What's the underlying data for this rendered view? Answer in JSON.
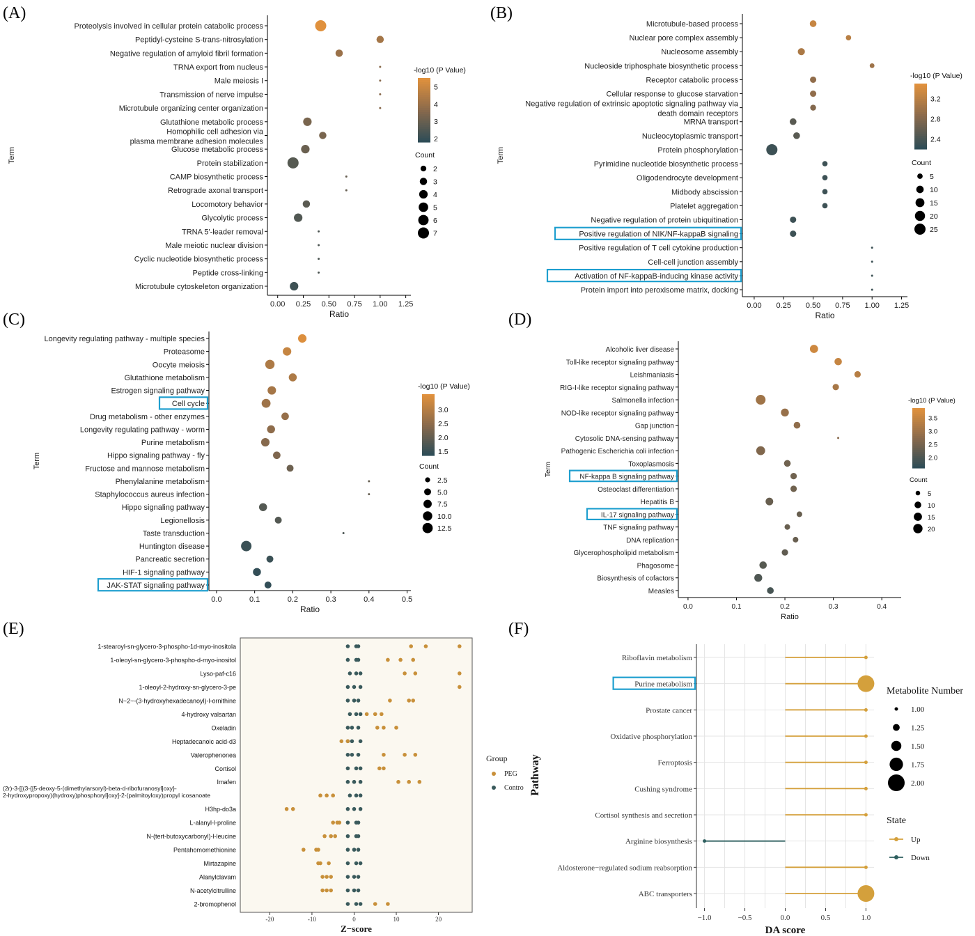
{
  "figure": {
    "panel_labels": [
      "(A)",
      "(B)",
      "(C)",
      "(D)",
      "(E)",
      "(F)"
    ]
  },
  "colors": {
    "high": "#e0913d",
    "mid": "#8a6a4c",
    "low": "#2f4d57",
    "up": "#d4a03c",
    "down": "#2e5f5f",
    "peg": "#c8903a",
    "control": "#3a5a5c",
    "highlight_box": "#1f9fcf"
  },
  "chart_data": [
    {
      "panel": "(A)",
      "type": "scatter",
      "xlabel": "Ratio",
      "ylabel": "Term",
      "xlim": [
        -0.1,
        1.3
      ],
      "xticks": [
        "0.00",
        "0.25",
        "0.50",
        "0.75",
        "1.00",
        "1.25"
      ],
      "terms": [
        "Proteolysis involved in cellular protein catabolic process",
        "Peptidyl-cysteine S-trans-nitrosylation",
        "Negative regulation of amyloid fibril formation",
        "TRNA export from nucleus",
        "Male meiosis I",
        "Transmission of nerve impulse",
        "Microtubule organizing center organization",
        "Glutathione metabolic process",
        "Homophilic cell adhesion via plasma membrane adhesion molecules",
        "Glucose metabolic process",
        "Protein stabilization",
        "CAMP biosynthetic process",
        "Retrograde axonal transport",
        "Locomotory behavior",
        "Glycolytic process",
        "TRNA 5'-leader removal",
        "Male meiotic nuclear division",
        "Cyclic nucleotide biosynthetic process",
        "Peptide cross-linking",
        "Microtubule cytoskeleton organization"
      ],
      "ratio": [
        0.42,
        1.0,
        0.6,
        1.0,
        1.0,
        1.0,
        1.0,
        0.29,
        0.44,
        0.27,
        0.15,
        0.67,
        0.67,
        0.28,
        0.2,
        0.4,
        0.4,
        0.4,
        0.4,
        0.16
      ],
      "count": [
        7,
        3,
        3,
        1,
        1,
        1,
        1,
        4,
        3,
        4,
        7,
        1,
        1,
        3,
        4,
        1,
        1,
        1,
        1,
        4
      ],
      "neglog10p": [
        5.5,
        4.2,
        4.0,
        3.6,
        3.6,
        3.6,
        3.6,
        3.3,
        3.3,
        3.0,
        2.6,
        2.9,
        2.9,
        2.7,
        2.5,
        2.4,
        2.4,
        2.4,
        2.4,
        2.1
      ],
      "color_legend": {
        "title": "-log10 (P Value)",
        "ticks": [
          "5",
          "4",
          "3",
          "2"
        ],
        "range": [
          1.8,
          5.5
        ]
      },
      "size_legend": {
        "title": "Count",
        "values": [
          "2",
          "3",
          "4",
          "5",
          "6",
          "7"
        ],
        "range": [
          1,
          7
        ]
      },
      "highlighted": []
    },
    {
      "panel": "(B)",
      "type": "scatter",
      "xlabel": "Ratio",
      "ylabel": "Term",
      "xlim": [
        -0.1,
        1.3
      ],
      "xticks": [
        "0.00",
        "0.25",
        "0.50",
        "0.75",
        "1.00",
        "1.25"
      ],
      "terms": [
        "Microtubule-based process",
        "Nuclear pore complex assembly",
        "Nucleosome assembly",
        "Nucleoside triphosphate biosynthetic process",
        "Receptor catabolic process",
        "Cellular response to glucose starvation",
        "Negative regulation of extrinsic apoptotic signaling pathway via death domain receptors",
        "MRNA transport",
        "Nucleocytoplasmic transport",
        "Protein phosphorylation",
        "Pyrimidine nucleotide biosynthetic process",
        "Oligodendrocyte development",
        "Midbody abscission",
        "Platelet aggregation",
        "Negative regulation of protein ubiquitination",
        "Positive regulation of NIK/NF-kappaB signaling",
        "Positive regulation of T cell cytokine production",
        "Cell-cell junction assembly",
        "Activation of NF-kappaB-inducing kinase activity",
        "Protein import into peroxisome matrix, docking"
      ],
      "ratio": [
        0.5,
        0.8,
        0.4,
        1.0,
        0.5,
        0.5,
        0.5,
        0.33,
        0.36,
        0.15,
        0.6,
        0.6,
        0.6,
        0.6,
        0.33,
        0.33,
        1.0,
        1.0,
        1.0,
        1.0
      ],
      "count": [
        8,
        5,
        9,
        4,
        7,
        7,
        6,
        8,
        8,
        25,
        5,
        5,
        5,
        5,
        7,
        7,
        2,
        2,
        2,
        2
      ],
      "neglog10p": [
        3.3,
        3.2,
        3.1,
        3.0,
        2.9,
        2.9,
        2.8,
        2.5,
        2.5,
        2.3,
        2.3,
        2.3,
        2.3,
        2.3,
        2.3,
        2.3,
        2.3,
        2.3,
        2.3,
        2.3
      ],
      "color_legend": {
        "title": "-log10 (P Value)",
        "ticks": [
          "3.2",
          "2.8",
          "2.4"
        ],
        "range": [
          2.2,
          3.5
        ]
      },
      "size_legend": {
        "title": "Count",
        "values": [
          "5",
          "10",
          "15",
          "20",
          "25"
        ],
        "range": [
          2,
          25
        ]
      },
      "highlighted": [
        15,
        18
      ]
    },
    {
      "panel": "(C)",
      "type": "scatter",
      "xlabel": "Ratio",
      "ylabel": "Term",
      "xlim": [
        -0.02,
        0.51
      ],
      "xticks": [
        "0.0",
        "0.1",
        "0.2",
        "0.3",
        "0.4",
        "0.5"
      ],
      "terms": [
        "Longevity regulating pathway - multiple species",
        "Proteasome",
        "Oocyte meiosis",
        "Glutathione metabolism",
        "Estrogen signaling pathway",
        "Cell cycle",
        "Drug metabolism - other enzymes",
        "Longevity regulating pathway - worm",
        "Purine metabolism",
        "Hippo signaling pathway - fly",
        "Fructose and mannose metabolism",
        "Phenylalanine metabolism",
        "Staphylococcus aureus infection",
        "Hippo signaling pathway",
        "Legionellosis",
        "Taste transduction",
        "Huntington disease",
        "Pancreatic secretion",
        "HIF-1 signaling pathway",
        "JAK-STAT signaling pathway"
      ],
      "ratio": [
        0.225,
        0.185,
        0.14,
        0.2,
        0.145,
        0.13,
        0.18,
        0.143,
        0.128,
        0.158,
        0.193,
        0.4,
        0.4,
        0.122,
        0.162,
        0.333,
        0.078,
        0.14,
        0.106,
        0.135
      ],
      "count": [
        8,
        8,
        10,
        7,
        8,
        9,
        6,
        7,
        8,
        6,
        5,
        1,
        1,
        7,
        5,
        1,
        13,
        5,
        7,
        5
      ],
      "neglog10p": [
        3.5,
        3.2,
        2.9,
        2.9,
        2.8,
        2.7,
        2.6,
        2.5,
        2.4,
        2.3,
        2.1,
        2.0,
        2.0,
        1.8,
        1.8,
        1.7,
        1.5,
        1.5,
        1.4,
        1.4
      ],
      "color_legend": {
        "title": "-log10 (P Value)",
        "ticks": [
          "3.0",
          "2.5",
          "2.0",
          "1.5"
        ],
        "range": [
          1.35,
          3.55
        ]
      },
      "size_legend": {
        "title": "Count",
        "values": [
          "2.5",
          "5.0",
          "7.5",
          "10.0",
          "12.5"
        ],
        "range": [
          1,
          13
        ]
      },
      "highlighted": [
        5,
        19
      ]
    },
    {
      "panel": "(D)",
      "type": "scatter",
      "xlabel": "Ratio",
      "ylabel": "Term",
      "xlim": [
        -0.02,
        0.44
      ],
      "xticks": [
        "0.0",
        "0.1",
        "0.2",
        "0.3",
        "0.4"
      ],
      "terms": [
        "Alcoholic liver disease",
        "Toll-like receptor signaling pathway",
        "Leishmaniasis",
        "RIG-I-like receptor signaling pathway",
        "Salmonella infection",
        "NOD-like receptor signaling pathway",
        "Gap junction",
        "Cytosolic DNA-sensing pathway",
        "Pathogenic Escherichia coli infection",
        "Toxoplasmosis",
        "NF-kappa B signaling pathway",
        "Osteoclast differentiation",
        "Hepatitis B",
        "IL-17 signaling pathway",
        "TNF signaling pathway",
        "DNA replication",
        "Glycerophospholipid metabolism",
        "Phagosome",
        "Biosynthesis of cofactors",
        "Measles"
      ],
      "ratio": [
        0.26,
        0.31,
        0.35,
        0.305,
        0.15,
        0.2,
        0.225,
        0.31,
        0.15,
        0.205,
        0.218,
        0.218,
        0.168,
        0.23,
        0.205,
        0.222,
        0.2,
        0.155,
        0.145,
        0.17
      ],
      "count": [
        15,
        12,
        9,
        9,
        22,
        14,
        10,
        3,
        18,
        10,
        9,
        9,
        13,
        7,
        7,
        7,
        9,
        12,
        14,
        10
      ],
      "neglog10p": [
        3.6,
        3.5,
        3.3,
        3.1,
        3.0,
        2.9,
        2.8,
        2.7,
        2.6,
        2.4,
        2.4,
        2.4,
        2.3,
        2.3,
        2.3,
        2.3,
        2.2,
        2.1,
        2.0,
        1.9
      ],
      "color_legend": {
        "title": "-log10 (P Value)",
        "ticks": [
          "3.5",
          "3.0",
          "2.5",
          "2.0"
        ],
        "range": [
          1.6,
          3.85
        ]
      },
      "size_legend": {
        "title": "Count",
        "values": [
          "5",
          "10",
          "15",
          "20"
        ],
        "range": [
          3,
          22
        ]
      },
      "highlighted": [
        10,
        13
      ]
    },
    {
      "panel": "(E)",
      "type": "scatter",
      "xlabel": "Z−score",
      "xlim": [
        -27,
        28
      ],
      "xticks": [
        -20,
        -10,
        0,
        10,
        20
      ],
      "compounds": [
        "1-stearoyl-sn-glycero-3-phospho-1d-myo-inositola",
        "1-oleoyl-sn-glycero-3-phospho-d-myo-inositol",
        "Lyso-paf-c16",
        "1-oleoyl-2-hydroxy-sn-glycero-3-pe",
        "N~2~-(3-hydroxyhexadecanoyl)-l-ornithine",
        "4-hydroxy valsartan",
        "Oxeladin",
        "Heptadecanoic acid-d3",
        "Valerophenonea",
        "Cortisol",
        "Imafen",
        "(2r)-3-[[(3-{[5-deoxy-5-(dimethylarsoryl)-beta-d-ribofuranosyl]oxy}-\n2-hydroxypropoxy)(hydroxy)phosphoryl]oxy]-2-(palmitoyloxy)propyl icosanoate",
        "H3hp-do3a",
        "L-alanyl-l-proline",
        "N-(tert-butoxycarbonyl)-l-leucine",
        "Pentahomomethionine",
        "Mirtazapine",
        "Alanylclavam",
        "N-acetylcitrulline",
        "2-bromophenol"
      ],
      "peg": [
        [
          13.5,
          17,
          25
        ],
        [
          8,
          11,
          14
        ],
        [
          12,
          14.5,
          25
        ],
        [
          25
        ],
        [
          8.5,
          13,
          14
        ],
        [
          3,
          5,
          6.5
        ],
        [
          5.5,
          7,
          10
        ],
        [
          -3,
          -1.5
        ],
        [
          7,
          12,
          14.5
        ],
        [
          6,
          7
        ],
        [
          10.5,
          13,
          15.5
        ],
        [
          -8,
          -6.5,
          -5
        ],
        [
          -16,
          -14.5
        ],
        [
          -5,
          -4,
          -3.5
        ],
        [
          -7,
          -5.5,
          -4.5
        ],
        [
          -12,
          -9,
          -8.5
        ],
        [
          -8.5,
          -8,
          -6
        ],
        [
          -7.5,
          -6.5,
          -5.5
        ],
        [
          -7.5,
          -6.5,
          -5.5
        ],
        [
          5,
          8
        ]
      ],
      "control": [
        [
          -1.5,
          0.5,
          1.0
        ],
        [
          -1.5,
          0.5,
          1.0
        ],
        [
          -1.0,
          0.5,
          1.5
        ],
        [
          -1.5,
          0,
          1.5
        ],
        [
          -1.5,
          0,
          1.0
        ],
        [
          -1.0,
          0.5,
          1.5
        ],
        [
          -1.5,
          -0.5,
          1.0
        ],
        [
          -1.5,
          -0.5,
          1.5
        ],
        [
          -1.5,
          -0.5,
          1.0
        ],
        [
          -1.5,
          0.5,
          1.5
        ],
        [
          -1.5,
          0,
          1.5
        ],
        [
          -1.0,
          0.5,
          1.5
        ],
        [
          -1.5,
          0,
          1.5
        ],
        [
          -1.5,
          0.5,
          1.0
        ],
        [
          -1.5,
          0.5,
          1.0
        ],
        [
          -1.5,
          0,
          1.0
        ],
        [
          -1.5,
          0.5,
          1.5
        ],
        [
          -1.5,
          0,
          1.0
        ],
        [
          -1.5,
          0,
          1.0
        ],
        [
          -1.5,
          0.5,
          1.5
        ]
      ],
      "legend": {
        "title": "Group",
        "items": [
          "PEG",
          "Contro"
        ]
      }
    },
    {
      "panel": "(F)",
      "type": "lollipop",
      "xlabel": "DA score",
      "ylabel": "Pathway",
      "xlim": [
        -1.1,
        1.1
      ],
      "xticks": [
        "−1.0",
        "−0.5",
        "0.0",
        "0.5",
        "1.0"
      ],
      "pathways": [
        "Riboflavin metabolism",
        "Purine metabolism",
        "Prostate cancer",
        "Oxidative phosphorylation",
        "Ferroptosis",
        "Cushing syndrome",
        "Cortisol synthesis and secretion",
        "Arginine biosynthesis",
        "Aldosterone−regulated sodium reabsorption",
        "ABC transporters"
      ],
      "da_score": [
        1,
        1,
        1,
        1,
        1,
        1,
        1,
        -1,
        1,
        1
      ],
      "metabolite_number": [
        1,
        2,
        1,
        1,
        1,
        1,
        1,
        1,
        1,
        2
      ],
      "state": [
        "Up",
        "Up",
        "Up",
        "Up",
        "Up",
        "Up",
        "Up",
        "Down",
        "Up",
        "Up"
      ],
      "size_legend": {
        "title": "Metabolite Number",
        "values": [
          "1.00",
          "1.25",
          "1.50",
          "1.75",
          "2.00"
        ]
      },
      "state_legend": {
        "title": "State",
        "items": [
          "Up",
          "Down"
        ]
      },
      "highlighted": [
        1
      ]
    }
  ]
}
